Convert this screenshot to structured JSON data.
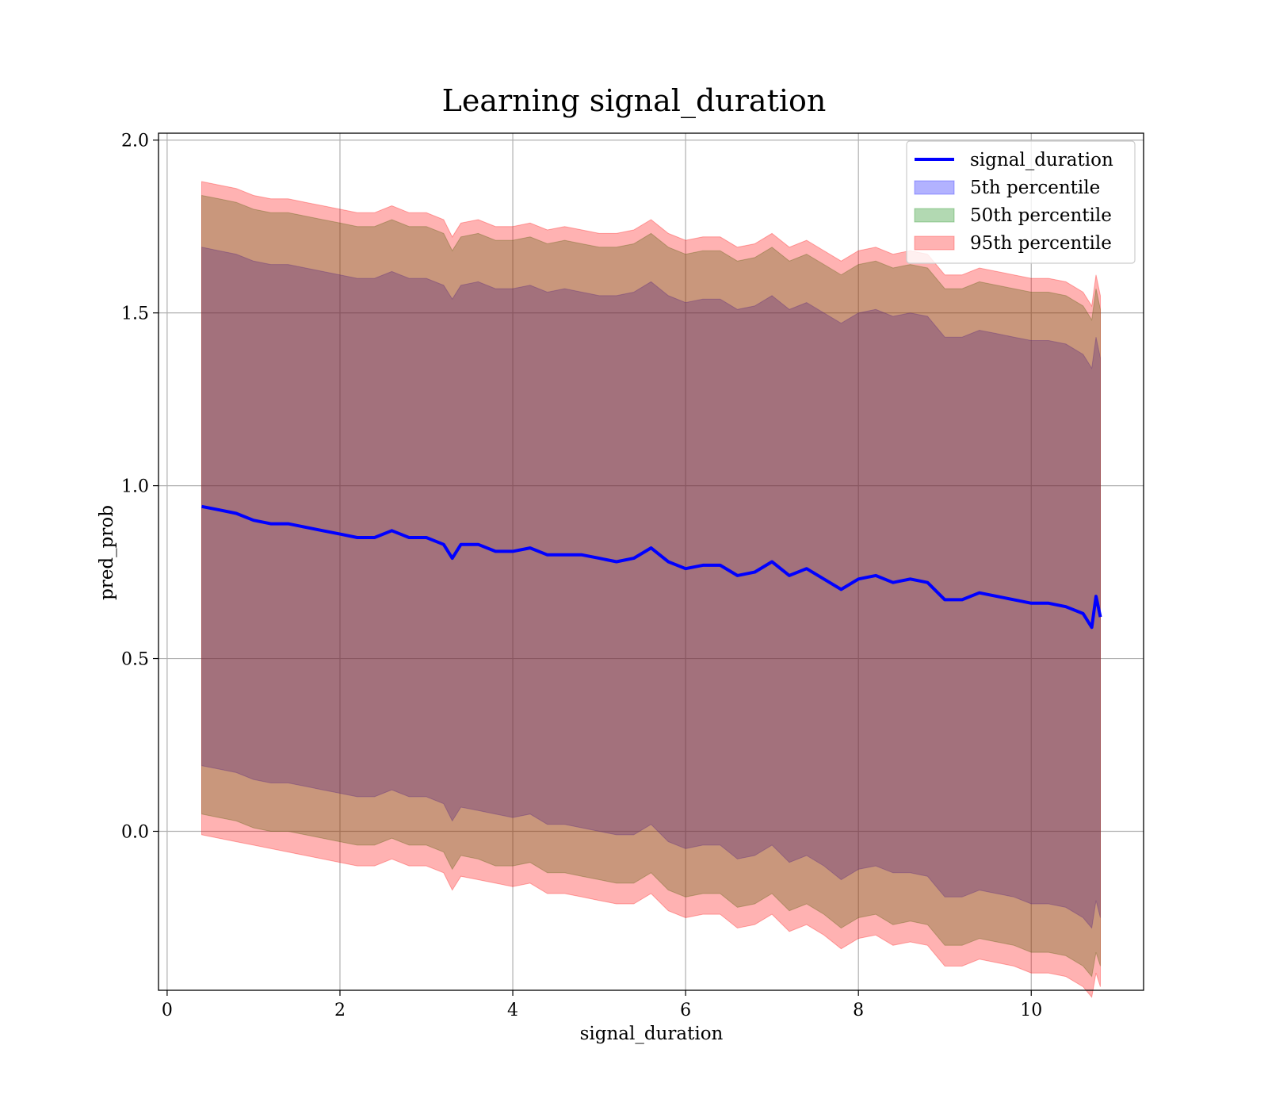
{
  "chart_data": {
    "type": "line",
    "title": "Learning signal_duration",
    "xlabel": "signal_duration",
    "ylabel": "pred_prob",
    "xlim": [
      -0.1,
      11.3
    ],
    "ylim": [
      -0.46,
      2.02
    ],
    "xticks": [
      0,
      2,
      4,
      6,
      8,
      10
    ],
    "xtick_labels": [
      "0",
      "2",
      "4",
      "6",
      "8",
      "10"
    ],
    "yticks": [
      0.0,
      0.5,
      1.0,
      1.5,
      2.0
    ],
    "ytick_labels": [
      "0.0",
      "0.5",
      "1.0",
      "1.5",
      "2.0"
    ],
    "grid": true,
    "legend_position": "top-right",
    "x": [
      0.4,
      0.6,
      0.8,
      1.0,
      1.2,
      1.4,
      1.6,
      1.8,
      2.0,
      2.2,
      2.4,
      2.6,
      2.8,
      3.0,
      3.2,
      3.3,
      3.4,
      3.6,
      3.8,
      4.0,
      4.2,
      4.4,
      4.6,
      4.8,
      5.0,
      5.2,
      5.4,
      5.6,
      5.8,
      6.0,
      6.2,
      6.4,
      6.6,
      6.8,
      7.0,
      7.2,
      7.4,
      7.6,
      7.8,
      8.0,
      8.2,
      8.4,
      8.6,
      8.8,
      9.0,
      9.2,
      9.4,
      9.6,
      9.8,
      10.0,
      10.2,
      10.4,
      10.6,
      10.7,
      10.75,
      10.8
    ],
    "series": [
      {
        "name": "signal_duration",
        "kind": "line",
        "color": "#0000ff",
        "values": [
          0.94,
          0.93,
          0.92,
          0.9,
          0.89,
          0.89,
          0.88,
          0.87,
          0.86,
          0.85,
          0.85,
          0.87,
          0.85,
          0.85,
          0.83,
          0.79,
          0.83,
          0.83,
          0.81,
          0.81,
          0.82,
          0.8,
          0.8,
          0.8,
          0.79,
          0.78,
          0.79,
          0.82,
          0.78,
          0.76,
          0.77,
          0.77,
          0.74,
          0.75,
          0.78,
          0.74,
          0.76,
          0.73,
          0.7,
          0.73,
          0.74,
          0.72,
          0.73,
          0.72,
          0.67,
          0.67,
          0.69,
          0.68,
          0.67,
          0.66,
          0.66,
          0.65,
          0.63,
          0.59,
          0.68,
          0.62
        ]
      },
      {
        "name": "5th percentile",
        "kind": "band",
        "color": "#0000ff",
        "lower": [
          0.19,
          0.18,
          0.17,
          0.15,
          0.14,
          0.14,
          0.13,
          0.12,
          0.11,
          0.1,
          0.1,
          0.12,
          0.1,
          0.1,
          0.08,
          0.03,
          0.07,
          0.06,
          0.05,
          0.04,
          0.05,
          0.02,
          0.02,
          0.01,
          0.0,
          -0.01,
          -0.01,
          0.02,
          -0.03,
          -0.05,
          -0.04,
          -0.04,
          -0.08,
          -0.07,
          -0.04,
          -0.09,
          -0.07,
          -0.1,
          -0.14,
          -0.11,
          -0.1,
          -0.12,
          -0.12,
          -0.13,
          -0.19,
          -0.19,
          -0.17,
          -0.18,
          -0.19,
          -0.21,
          -0.21,
          -0.22,
          -0.25,
          -0.28,
          -0.2,
          -0.25
        ],
        "upper": [
          1.69,
          1.68,
          1.67,
          1.65,
          1.64,
          1.64,
          1.63,
          1.62,
          1.61,
          1.6,
          1.6,
          1.62,
          1.6,
          1.6,
          1.58,
          1.54,
          1.58,
          1.59,
          1.57,
          1.57,
          1.58,
          1.56,
          1.57,
          1.56,
          1.55,
          1.55,
          1.56,
          1.59,
          1.55,
          1.53,
          1.54,
          1.54,
          1.51,
          1.52,
          1.55,
          1.51,
          1.53,
          1.5,
          1.47,
          1.5,
          1.51,
          1.49,
          1.5,
          1.49,
          1.43,
          1.43,
          1.45,
          1.44,
          1.43,
          1.42,
          1.42,
          1.41,
          1.38,
          1.34,
          1.43,
          1.37
        ]
      },
      {
        "name": "50th percentile",
        "kind": "band",
        "color": "#008000",
        "lower": [
          0.05,
          0.04,
          0.03,
          0.01,
          0.0,
          0.0,
          -0.01,
          -0.02,
          -0.03,
          -0.04,
          -0.04,
          -0.02,
          -0.04,
          -0.04,
          -0.06,
          -0.11,
          -0.07,
          -0.08,
          -0.1,
          -0.1,
          -0.09,
          -0.12,
          -0.12,
          -0.13,
          -0.14,
          -0.15,
          -0.15,
          -0.12,
          -0.17,
          -0.19,
          -0.18,
          -0.18,
          -0.22,
          -0.21,
          -0.18,
          -0.23,
          -0.21,
          -0.24,
          -0.28,
          -0.25,
          -0.24,
          -0.27,
          -0.26,
          -0.27,
          -0.33,
          -0.33,
          -0.31,
          -0.32,
          -0.33,
          -0.35,
          -0.35,
          -0.36,
          -0.39,
          -0.42,
          -0.35,
          -0.39
        ],
        "upper": [
          1.84,
          1.83,
          1.82,
          1.8,
          1.79,
          1.79,
          1.78,
          1.77,
          1.76,
          1.75,
          1.75,
          1.77,
          1.75,
          1.75,
          1.73,
          1.68,
          1.72,
          1.73,
          1.71,
          1.71,
          1.72,
          1.7,
          1.71,
          1.7,
          1.69,
          1.69,
          1.7,
          1.73,
          1.69,
          1.67,
          1.68,
          1.68,
          1.65,
          1.66,
          1.69,
          1.65,
          1.67,
          1.64,
          1.61,
          1.64,
          1.65,
          1.63,
          1.64,
          1.63,
          1.57,
          1.57,
          1.59,
          1.58,
          1.57,
          1.56,
          1.56,
          1.55,
          1.52,
          1.48,
          1.57,
          1.51
        ]
      },
      {
        "name": "95th percentile",
        "kind": "band",
        "color": "#ff0000",
        "lower": [
          -0.01,
          -0.02,
          -0.03,
          -0.04,
          -0.05,
          -0.06,
          -0.07,
          -0.08,
          -0.09,
          -0.1,
          -0.1,
          -0.08,
          -0.1,
          -0.1,
          -0.12,
          -0.17,
          -0.13,
          -0.14,
          -0.15,
          -0.16,
          -0.15,
          -0.18,
          -0.18,
          -0.19,
          -0.2,
          -0.21,
          -0.21,
          -0.18,
          -0.23,
          -0.25,
          -0.24,
          -0.24,
          -0.28,
          -0.27,
          -0.24,
          -0.29,
          -0.27,
          -0.3,
          -0.34,
          -0.31,
          -0.3,
          -0.33,
          -0.32,
          -0.33,
          -0.39,
          -0.39,
          -0.37,
          -0.38,
          -0.39,
          -0.41,
          -0.41,
          -0.42,
          -0.45,
          -0.48,
          -0.41,
          -0.45
        ],
        "upper": [
          1.88,
          1.87,
          1.86,
          1.84,
          1.83,
          1.83,
          1.82,
          1.81,
          1.8,
          1.79,
          1.79,
          1.81,
          1.79,
          1.79,
          1.77,
          1.72,
          1.76,
          1.77,
          1.75,
          1.75,
          1.76,
          1.74,
          1.75,
          1.74,
          1.73,
          1.73,
          1.74,
          1.77,
          1.73,
          1.71,
          1.72,
          1.72,
          1.69,
          1.7,
          1.73,
          1.69,
          1.71,
          1.68,
          1.65,
          1.68,
          1.69,
          1.67,
          1.68,
          1.67,
          1.61,
          1.61,
          1.63,
          1.62,
          1.61,
          1.6,
          1.6,
          1.59,
          1.56,
          1.52,
          1.61,
          1.55
        ]
      }
    ]
  }
}
